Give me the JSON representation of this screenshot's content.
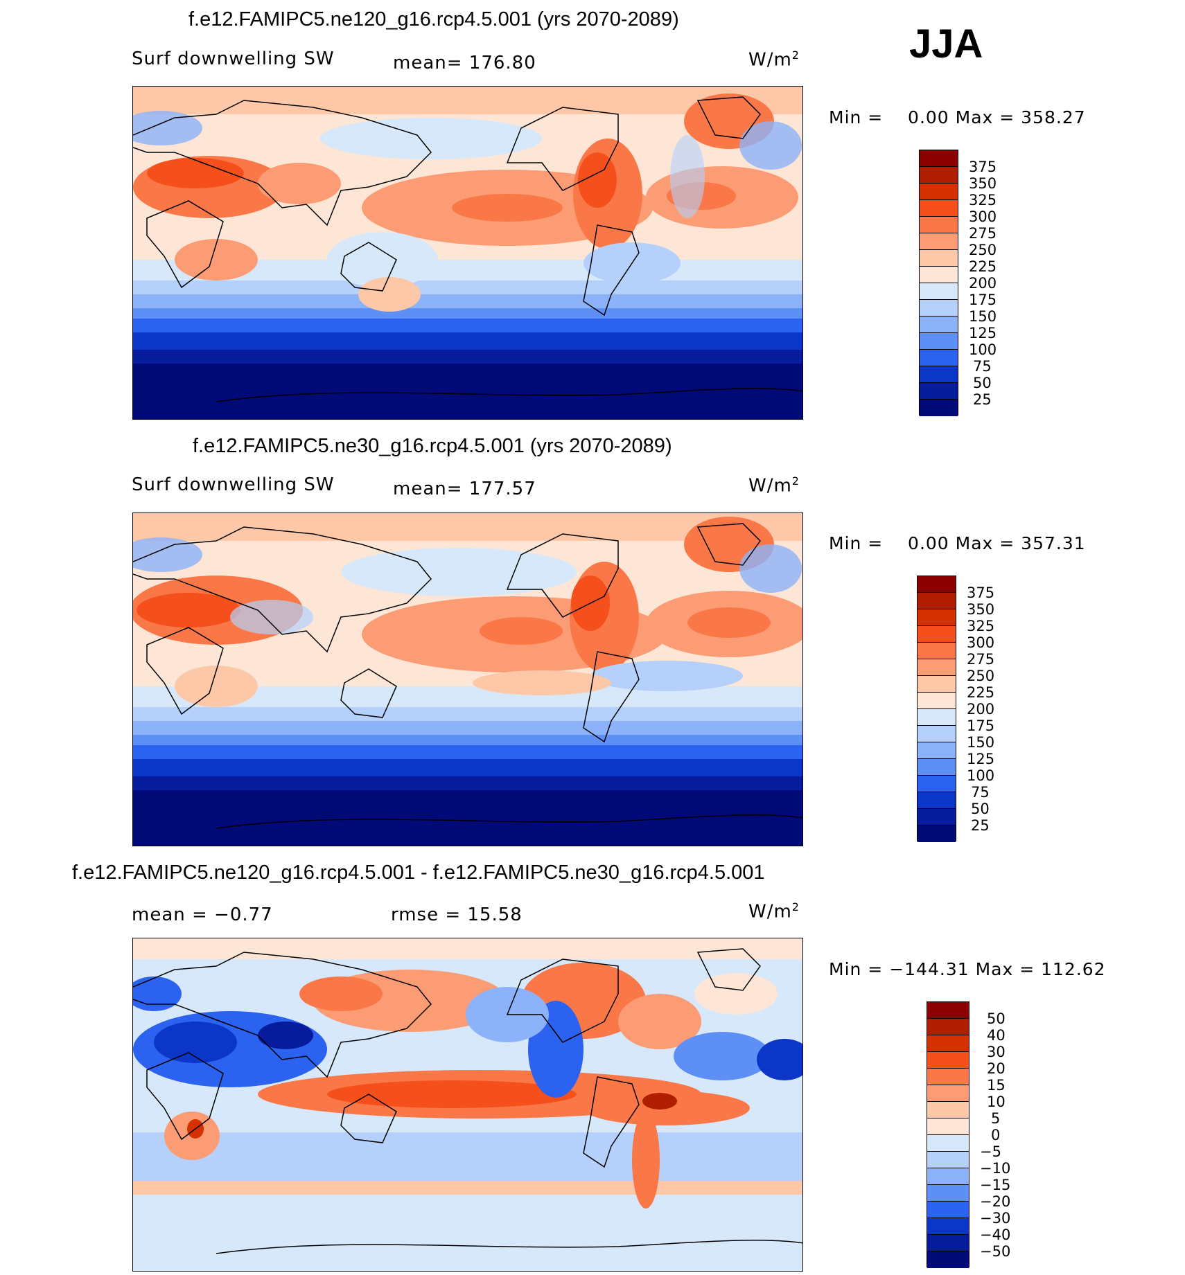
{
  "season": "JJA",
  "units": "W/m",
  "units_sup": "2",
  "panels": [
    {
      "title": "f.e12.FAMIPC5.ne120_g16.rcp4.5.001 (yrs 2070-2089)",
      "variable": "Surf downwelling SW",
      "mean": "mean= 176.80",
      "minmax": "Min =    0.00 Max = 358.27"
    },
    {
      "title": "f.e12.FAMIPC5.ne30_g16.rcp4.5.001 (yrs 2070-2089)",
      "variable": "Surf downwelling SW",
      "mean": "mean= 177.57",
      "minmax": "Min =    0.00 Max = 357.31"
    },
    {
      "title": "f.e12.FAMIPC5.ne120_g16.rcp4.5.001 - f.e12.FAMIPC5.ne30_g16.rcp4.5.001",
      "mean": "mean =   −0.77",
      "rmse": "rmse =   15.58",
      "minmax": "Min = −144.31 Max = 112.62"
    }
  ],
  "chart_data": [
    {
      "type": "heatmap",
      "title": "f.e12.FAMIPC5.ne120_g16.rcp4.5.001 (yrs 2070-2089)",
      "variable": "Surf downwelling SW",
      "units": "W/m2",
      "mean": 176.8,
      "min": 0.0,
      "max": 358.27,
      "levels": [
        25,
        50,
        75,
        100,
        125,
        150,
        175,
        200,
        225,
        250,
        275,
        300,
        325,
        350,
        375
      ],
      "level_labels": [
        "375",
        "350",
        "325",
        "300",
        "275",
        "250",
        "225",
        "200",
        "175",
        "150",
        "125",
        "100",
        "75",
        "50",
        "25"
      ],
      "colors": [
        "#8b0000",
        "#b01e00",
        "#d53000",
        "#f5501c",
        "#fa7848",
        "#fb9c74",
        "#fdc8a8",
        "#fde6d6",
        "#d6e8fa",
        "#b4d0fb",
        "#8cb3fa",
        "#5e8ff5",
        "#2b63f0",
        "#0b36c8",
        "#061c9c",
        "#020a78"
      ]
    },
    {
      "type": "heatmap",
      "title": "f.e12.FAMIPC5.ne30_g16.rcp4.5.001 (yrs 2070-2089)",
      "variable": "Surf downwelling SW",
      "units": "W/m2",
      "mean": 177.57,
      "min": 0.0,
      "max": 357.31,
      "levels": [
        25,
        50,
        75,
        100,
        125,
        150,
        175,
        200,
        225,
        250,
        275,
        300,
        325,
        350,
        375
      ],
      "level_labels": [
        "375",
        "350",
        "325",
        "300",
        "275",
        "250",
        "225",
        "200",
        "175",
        "150",
        "125",
        "100",
        "75",
        "50",
        "25"
      ],
      "colors": [
        "#8b0000",
        "#b01e00",
        "#d53000",
        "#f5501c",
        "#fa7848",
        "#fb9c74",
        "#fdc8a8",
        "#fde6d6",
        "#d6e8fa",
        "#b4d0fb",
        "#8cb3fa",
        "#5e8ff5",
        "#2b63f0",
        "#0b36c8",
        "#061c9c",
        "#020a78"
      ]
    },
    {
      "type": "heatmap",
      "title": "f.e12.FAMIPC5.ne120_g16.rcp4.5.001 - f.e12.FAMIPC5.ne30_g16.rcp4.5.001",
      "units": "W/m2",
      "mean": -0.77,
      "rmse": 15.58,
      "min": -144.31,
      "max": 112.62,
      "levels": [
        -50,
        -40,
        -30,
        -20,
        -15,
        -10,
        -5,
        0,
        5,
        10,
        15,
        20,
        30,
        40,
        50
      ],
      "level_labels": [
        "50",
        "40",
        "30",
        "20",
        "15",
        "10",
        "5",
        "0",
        "−5",
        "−10",
        "−15",
        "−20",
        "−30",
        "−40",
        "−50"
      ],
      "colors": [
        "#8b0000",
        "#b01e00",
        "#d53000",
        "#f5501c",
        "#fa7848",
        "#fb9c74",
        "#fdc8a8",
        "#fde6d6",
        "#d6e8fa",
        "#b4d0fb",
        "#8cb3fa",
        "#5e8ff5",
        "#2b63f0",
        "#0b36c8",
        "#061c9c",
        "#020a78"
      ]
    }
  ]
}
